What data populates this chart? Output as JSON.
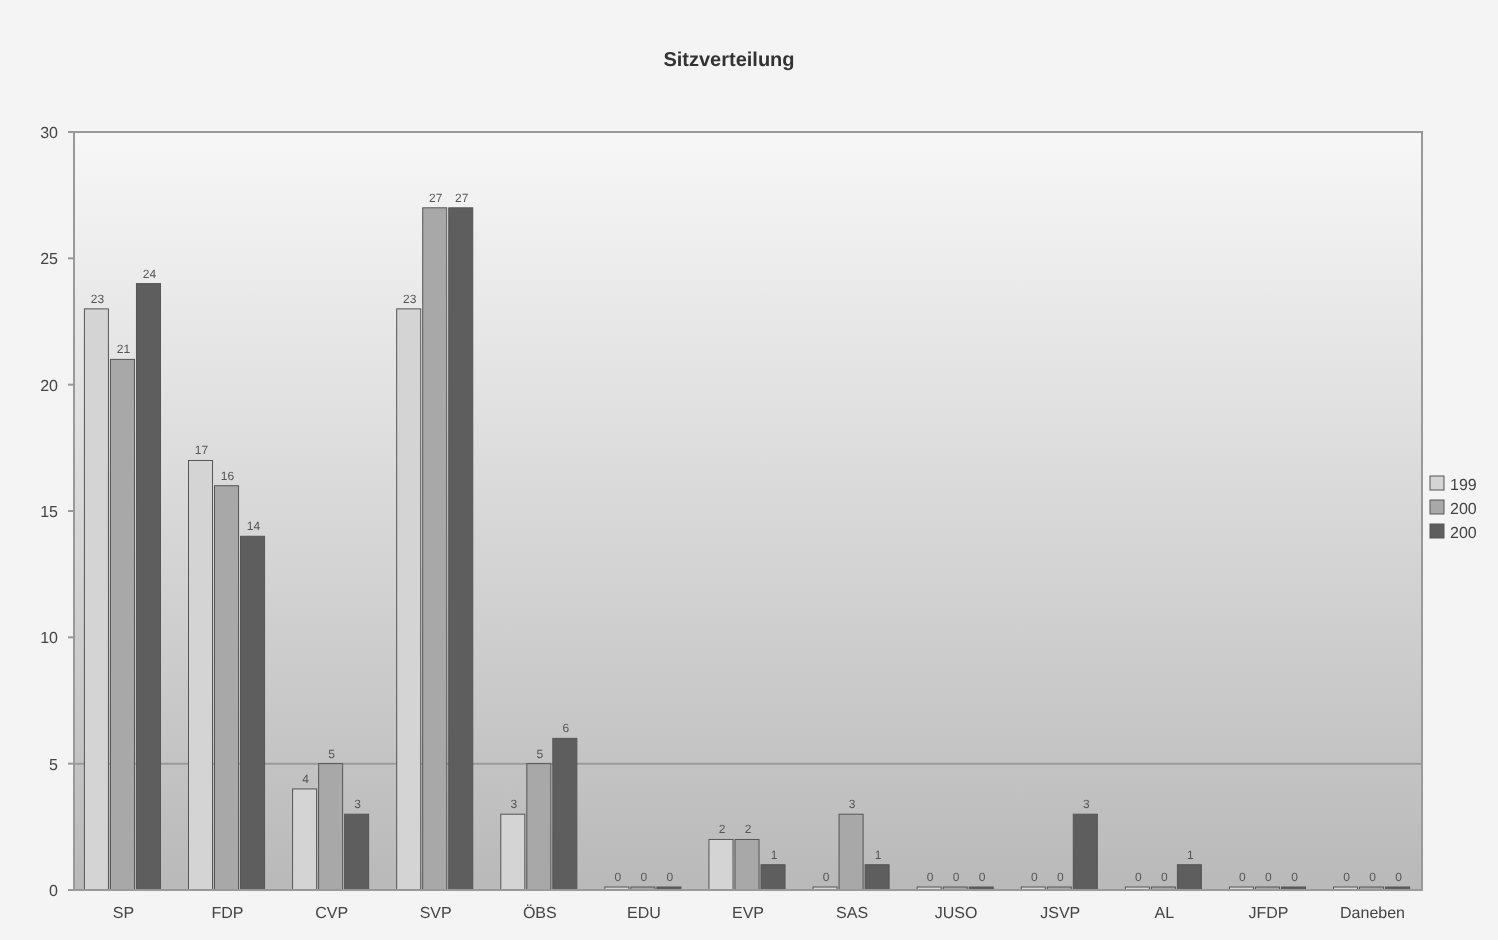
{
  "chart_data": {
    "type": "bar",
    "title": "Sitzverteilung",
    "categories": [
      "SP",
      "FDP",
      "CVP",
      "SVP",
      "ÖBS",
      "EDU",
      "EVP",
      "SAS",
      "JUSO",
      "JSVP",
      "AL",
      "JFDP",
      "Daneben"
    ],
    "series": [
      {
        "name": "199",
        "color": "#d4d4d4",
        "values": [
          23,
          17,
          4,
          23,
          3,
          0,
          2,
          0,
          0,
          0,
          0,
          0,
          0
        ]
      },
      {
        "name": "200",
        "color": "#a8a8a8",
        "values": [
          21,
          16,
          5,
          27,
          5,
          0,
          2,
          3,
          0,
          0,
          0,
          0,
          0
        ]
      },
      {
        "name": "200",
        "color": "#5e5e5e",
        "values": [
          24,
          14,
          3,
          27,
          6,
          0,
          1,
          1,
          0,
          3,
          1,
          0,
          0
        ]
      }
    ],
    "ylim": [
      0,
      30
    ],
    "yticks": [
      0,
      5,
      10,
      15,
      20,
      25,
      30
    ],
    "ref_lines": [
      {
        "axis": "y",
        "value": 5,
        "color": "#9a9a9a"
      }
    ],
    "data_labels": true,
    "legend": "right"
  }
}
